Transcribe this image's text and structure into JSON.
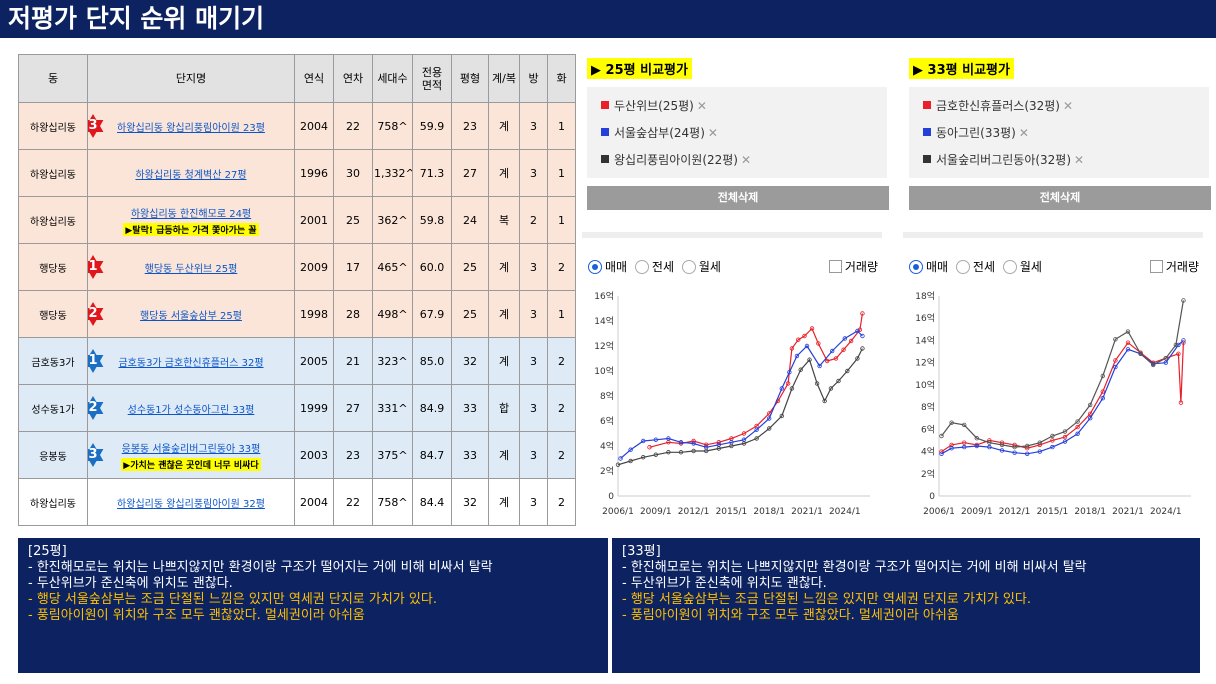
{
  "page": {
    "title": "저평가 단지 순위 매기기"
  },
  "table": {
    "headers": [
      "동",
      "단지명",
      "연식",
      "연차",
      "세대수",
      "전용면적",
      "평형",
      "계/복",
      "방",
      "화"
    ],
    "rows": [
      {
        "dong": "하왕십리동",
        "name": "하왕십리동 왕십리풍림아이원 23평",
        "note": "",
        "badge": "3",
        "badge_color": "#e0161d",
        "year": "2004",
        "age": "22",
        "units": "758^",
        "area": "59.9",
        "pyeong": "23",
        "type": "계",
        "rooms": "3",
        "baths": "1",
        "tone": "warm"
      },
      {
        "dong": "하왕십리동",
        "name": "하왕십리동 청계벽산 27평",
        "note": "",
        "badge": "",
        "badge_color": "",
        "year": "1996",
        "age": "30",
        "units": "1,332^",
        "area": "71.3",
        "pyeong": "27",
        "type": "계",
        "rooms": "3",
        "baths": "1",
        "tone": "warm"
      },
      {
        "dong": "하왕십리동",
        "name": "하왕십리동 한진해모로 24평",
        "note": "▶탈락! 급등하는 가격 쫓아가는 꼴",
        "badge": "",
        "badge_color": "",
        "year": "2001",
        "age": "25",
        "units": "362^",
        "area": "59.8",
        "pyeong": "24",
        "type": "복",
        "rooms": "2",
        "baths": "1",
        "tone": "warm"
      },
      {
        "dong": "행당동",
        "name": "행당동 두산위브 25평",
        "note": "",
        "badge": "1",
        "badge_color": "#e0161d",
        "year": "2009",
        "age": "17",
        "units": "465^",
        "area": "60.0",
        "pyeong": "25",
        "type": "계",
        "rooms": "3",
        "baths": "2",
        "tone": "warm"
      },
      {
        "dong": "행당동",
        "name": "행당동 서울숲삼부 25평",
        "note": "",
        "badge": "2",
        "badge_color": "#e0161d",
        "year": "1998",
        "age": "28",
        "units": "498^",
        "area": "67.9",
        "pyeong": "25",
        "type": "계",
        "rooms": "3",
        "baths": "1",
        "tone": "warm"
      },
      {
        "dong": "금호동3가",
        "name": "금호동3가 금호한신휴플러스 32평",
        "note": "",
        "badge": "1",
        "badge_color": "#1a6fc4",
        "year": "2005",
        "age": "21",
        "units": "323^",
        "area": "85.0",
        "pyeong": "32",
        "type": "계",
        "rooms": "3",
        "baths": "2",
        "tone": "cool"
      },
      {
        "dong": "성수동1가",
        "name": "성수동1가 성수동아그린 33평",
        "note": "",
        "badge": "2",
        "badge_color": "#1a6fc4",
        "year": "1999",
        "age": "27",
        "units": "331^",
        "area": "84.9",
        "pyeong": "33",
        "type": "합",
        "rooms": "3",
        "baths": "2",
        "tone": "cool"
      },
      {
        "dong": "응봉동",
        "name": "응봉동 서울숲리버그린동아 33평",
        "note": "▶가치는 괜찮은 곳인데 너무 비싸다",
        "badge": "3",
        "badge_color": "#1a6fc4",
        "year": "2003",
        "age": "23",
        "units": "375^",
        "area": "84.7",
        "pyeong": "33",
        "type": "계",
        "rooms": "3",
        "baths": "2",
        "tone": "cool"
      },
      {
        "dong": "하왕십리동",
        "name": "하왕십리동 왕십리풍림아이원 32평",
        "note": "",
        "badge": "",
        "badge_color": "",
        "year": "2004",
        "age": "22",
        "units": "758^",
        "area": "84.4",
        "pyeong": "32",
        "type": "계",
        "rooms": "3",
        "baths": "2",
        "tone": "plain"
      }
    ]
  },
  "compare25": {
    "title": "25평 비교평가",
    "items": [
      {
        "label": "두산위브(25평)",
        "color": "#e8202a"
      },
      {
        "label": "서울숲삼부(24평)",
        "color": "#2440d8"
      },
      {
        "label": "왕십리풍림아이원(22평)",
        "color": "#333333"
      }
    ],
    "delete_label": "전체삭제",
    "radios": [
      "매매",
      "전세",
      "월세"
    ],
    "checkbox": "거래량"
  },
  "compare33": {
    "title": "33평 비교평가",
    "items": [
      {
        "label": "금호한신휴플러스(32평)",
        "color": "#e8202a"
      },
      {
        "label": "동아그린(33평)",
        "color": "#2440d8"
      },
      {
        "label": "서울숲리버그린동아(32평)",
        "color": "#333333"
      }
    ],
    "delete_label": "전체삭제",
    "radios": [
      "매매",
      "전세",
      "월세"
    ],
    "checkbox": "거래량"
  },
  "chart_data": [
    {
      "type": "line",
      "ylim": [
        0,
        16
      ],
      "yticks": [
        "0",
        "2억",
        "4억",
        "6억",
        "8억",
        "10억",
        "12억",
        "14억",
        "16억"
      ],
      "xticks": [
        "2006/1",
        "2009/1",
        "2012/1",
        "2015/1",
        "2018/1",
        "2021/1",
        "2024/1"
      ],
      "xlim": [
        2006,
        2026
      ],
      "series": [
        {
          "color": "#e8202a",
          "points": [
            [
              2008.5,
              3.9
            ],
            [
              2010,
              4.3
            ],
            [
              2011,
              4.2
            ],
            [
              2012,
              4.4
            ],
            [
              2013,
              4.1
            ],
            [
              2014,
              4.3
            ],
            [
              2015,
              4.6
            ],
            [
              2016,
              5.0
            ],
            [
              2017,
              5.6
            ],
            [
              2018,
              6.6
            ],
            [
              2018.7,
              7.6
            ],
            [
              2019.5,
              9.0
            ],
            [
              2019.8,
              11.8
            ],
            [
              2020.3,
              12.5
            ],
            [
              2020.8,
              12.8
            ],
            [
              2021.4,
              13.4
            ],
            [
              2021.9,
              12.2
            ],
            [
              2022.6,
              10.8
            ],
            [
              2023.3,
              11.0
            ],
            [
              2023.9,
              11.7
            ],
            [
              2024.5,
              12.4
            ],
            [
              2025.2,
              13.3
            ],
            [
              2025.4,
              14.6
            ]
          ]
        },
        {
          "color": "#2440d8",
          "points": [
            [
              2006.2,
              3.0
            ],
            [
              2007,
              3.7
            ],
            [
              2008,
              4.4
            ],
            [
              2009,
              4.5
            ],
            [
              2010,
              4.6
            ],
            [
              2011,
              4.3
            ],
            [
              2012,
              4.2
            ],
            [
              2013,
              3.9
            ],
            [
              2014,
              4.1
            ],
            [
              2015,
              4.3
            ],
            [
              2016,
              4.5
            ],
            [
              2017,
              5.3
            ],
            [
              2018,
              6.2
            ],
            [
              2019,
              8.6
            ],
            [
              2019.6,
              9.9
            ],
            [
              2020.2,
              11.2
            ],
            [
              2021,
              12.0
            ],
            [
              2022,
              10.4
            ],
            [
              2023,
              11.6
            ],
            [
              2024,
              12.6
            ],
            [
              2025,
              13.2
            ],
            [
              2025.4,
              12.8
            ]
          ]
        },
        {
          "color": "#444444",
          "points": [
            [
              2006,
              2.5
            ],
            [
              2007,
              2.8
            ],
            [
              2008,
              3.1
            ],
            [
              2009,
              3.3
            ],
            [
              2010,
              3.5
            ],
            [
              2011,
              3.5
            ],
            [
              2012,
              3.6
            ],
            [
              2013,
              3.6
            ],
            [
              2014,
              3.8
            ],
            [
              2015,
              4.0
            ],
            [
              2016,
              4.2
            ],
            [
              2017,
              4.6
            ],
            [
              2018,
              5.4
            ],
            [
              2019,
              6.4
            ],
            [
              2019.8,
              8.6
            ],
            [
              2020.5,
              10.1
            ],
            [
              2021.2,
              10.9
            ],
            [
              2021.8,
              9.0
            ],
            [
              2022.4,
              7.6
            ],
            [
              2022.9,
              8.6
            ],
            [
              2023.5,
              9.2
            ],
            [
              2024.2,
              10.0
            ],
            [
              2025,
              11.0
            ],
            [
              2025.4,
              11.8
            ]
          ]
        }
      ]
    },
    {
      "type": "line",
      "ylim": [
        0,
        18
      ],
      "yticks": [
        "0",
        "2억",
        "4억",
        "6억",
        "8억",
        "10억",
        "12억",
        "14억",
        "16억",
        "18억"
      ],
      "xticks": [
        "2006/1",
        "2009/1",
        "2012/1",
        "2015/1",
        "2018/1",
        "2021/1",
        "2024/1"
      ],
      "xlim": [
        2006,
        2026
      ],
      "series": [
        {
          "color": "#e8202a",
          "points": [
            [
              2006.2,
              4.0
            ],
            [
              2007,
              4.6
            ],
            [
              2008,
              4.8
            ],
            [
              2009,
              4.6
            ],
            [
              2010,
              5.0
            ],
            [
              2011,
              4.8
            ],
            [
              2012,
              4.6
            ],
            [
              2013,
              4.3
            ],
            [
              2014,
              4.6
            ],
            [
              2015,
              5.0
            ],
            [
              2016,
              5.3
            ],
            [
              2017,
              6.2
            ],
            [
              2018,
              7.4
            ],
            [
              2019,
              9.4
            ],
            [
              2020,
              12.2
            ],
            [
              2021,
              13.8
            ],
            [
              2022,
              12.9
            ],
            [
              2023,
              12.0
            ],
            [
              2024,
              12.4
            ],
            [
              2025,
              12.8
            ],
            [
              2025.2,
              8.4
            ],
            [
              2025.4,
              13.8
            ]
          ]
        },
        {
          "color": "#2440d8",
          "points": [
            [
              2006.2,
              3.8
            ],
            [
              2007,
              4.3
            ],
            [
              2008,
              4.4
            ],
            [
              2009,
              4.5
            ],
            [
              2010,
              4.4
            ],
            [
              2011,
              4.1
            ],
            [
              2012,
              3.9
            ],
            [
              2013,
              3.8
            ],
            [
              2014,
              4.0
            ],
            [
              2015,
              4.4
            ],
            [
              2016,
              4.9
            ],
            [
              2017,
              5.6
            ],
            [
              2018,
              7.0
            ],
            [
              2019,
              8.8
            ],
            [
              2020,
              11.6
            ],
            [
              2021,
              13.2
            ],
            [
              2022,
              12.8
            ],
            [
              2023,
              11.9
            ],
            [
              2024,
              12.0
            ],
            [
              2025,
              13.6
            ],
            [
              2025.4,
              14.0
            ]
          ]
        },
        {
          "color": "#555555",
          "points": [
            [
              2006.2,
              5.4
            ],
            [
              2007,
              6.6
            ],
            [
              2008,
              6.4
            ],
            [
              2009,
              5.2
            ],
            [
              2010,
              4.8
            ],
            [
              2011,
              4.6
            ],
            [
              2012,
              4.4
            ],
            [
              2013,
              4.5
            ],
            [
              2014,
              4.8
            ],
            [
              2015,
              5.4
            ],
            [
              2016,
              5.8
            ],
            [
              2017,
              6.7
            ],
            [
              2018,
              8.2
            ],
            [
              2019,
              10.8
            ],
            [
              2020,
              14.1
            ],
            [
              2021,
              14.8
            ],
            [
              2022,
              12.8
            ],
            [
              2023,
              11.8
            ],
            [
              2024,
              12.4
            ],
            [
              2024.8,
              13.6
            ],
            [
              2025.4,
              17.6
            ]
          ]
        }
      ]
    }
  ],
  "notes": [
    {
      "heading": "[25평]",
      "lines": [
        {
          "text": "- 한진해모로는 위치는 나쁘지않지만 환경이랑 구조가 떨어지는 거에 비해 비싸서 탈락",
          "style": "white"
        },
        {
          "text": "- 두산위브가 준신축에 위치도 괜찮다.",
          "style": "white"
        },
        {
          "text": "- 행당 서울숲삼부는 조금 단절된 느낌은 있지만 역세권 단지로 가치가 있다.",
          "style": "yellow"
        },
        {
          "text": "- 풍림아이원이 위치와 구조 모두 괜찮았다. 멀세권이라 아쉬움",
          "style": "yellow"
        }
      ]
    },
    {
      "heading": "[33평]",
      "lines": [
        {
          "text": "- 한진해모로는 위치는 나쁘지않지만 환경이랑 구조가 떨어지는 거에 비해 비싸서 탈락",
          "style": "white"
        },
        {
          "text": "- 두산위브가 준신축에 위치도 괜찮다.",
          "style": "white"
        },
        {
          "text": "- 행당 서울숲삼부는 조금 단절된 느낌은 있지만 역세권 단지로 가치가 있다.",
          "style": "yellow"
        },
        {
          "text": "- 풍림아이원이 위치와 구조 모두 괜찮았다. 멀세권이라 아쉬움",
          "style": "yellow"
        }
      ]
    }
  ]
}
